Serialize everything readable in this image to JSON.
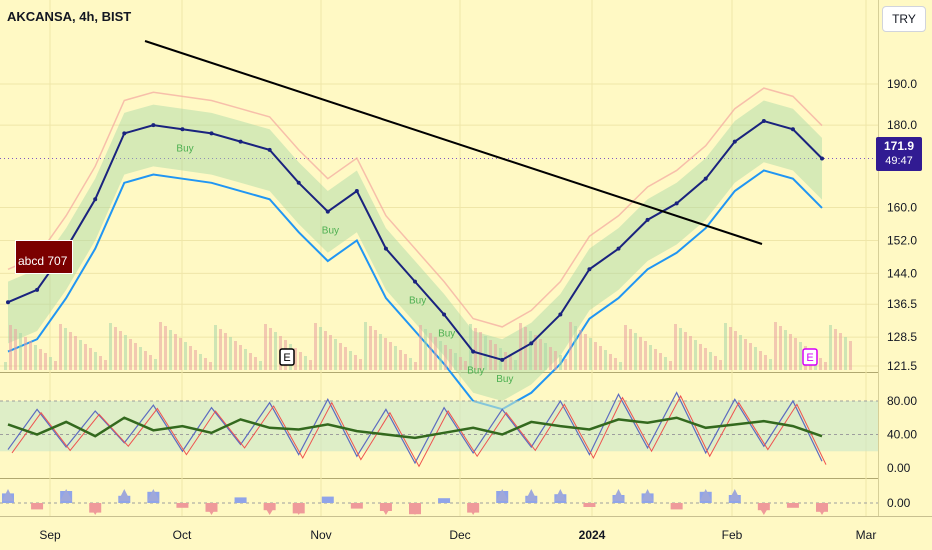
{
  "header": {
    "symbol_title": "AKCANSA, 4h, BIST",
    "currency_button": "TRY"
  },
  "price_tag": {
    "price": "171.9",
    "countdown": "49:47"
  },
  "annotation": {
    "label": "abcd 707"
  },
  "earnings_markers": [
    "E",
    "E"
  ],
  "colors": {
    "background": "#fff9c4",
    "candle": "#1a237e",
    "trendline": "#000000",
    "cloud_blue": "#2196f3",
    "buy_label": "#4caf50",
    "price_tag_bg": "#311b92",
    "stoch_k": "#5c6bc0",
    "stoch_d": "#ef5350",
    "rsi": "#33691e",
    "histo_up": "#90a4e8",
    "histo_down": "#ef9a9a"
  },
  "chart_data": [
    {
      "type": "line",
      "title": "AKCANSA, 4h, BIST",
      "subtype": "candlestick-approx",
      "x_tick_labels": [
        "Sep",
        "Oct",
        "Nov",
        "Dec",
        "2024",
        "Feb",
        "Mar"
      ],
      "y_tick_labels": [
        "190.0",
        "180.0",
        "171.9",
        "160.0",
        "152.0",
        "144.0",
        "136.5",
        "128.5",
        "121.5"
      ],
      "ylim": [
        121.5,
        195
      ],
      "series": [
        {
          "x": [
            "Aug 20",
            "Aug 28",
            "Sep 5",
            "Sep 12",
            "Sep 18",
            "Sep 25",
            "Oct 2",
            "Oct 9",
            "Oct 16",
            "Oct 23",
            "Oct 30",
            "Nov 6",
            "Nov 13",
            "Nov 20",
            "Nov 27",
            "Dec 4",
            "Dec 11",
            "Dec 18",
            "Dec 22",
            "Dec 28",
            "Jan 4",
            "Jan 11",
            "Jan 18",
            "Jan 25",
            "Feb 1",
            "Feb 8",
            "Feb 13",
            "Feb 16",
            "Feb 20"
          ],
          "values": [
            137,
            140,
            150,
            162,
            178,
            180,
            179,
            178,
            176,
            174,
            166,
            159,
            164,
            150,
            142,
            134,
            125,
            123,
            127,
            134,
            145,
            150,
            157,
            161,
            167,
            176,
            181,
            179,
            171.9
          ]
        }
      ],
      "annotations": [
        "Buy",
        "abcd 707"
      ]
    },
    {
      "type": "line",
      "y_tick_labels": [
        "80.00",
        "40.00",
        "0.00"
      ],
      "ylim": [
        0,
        100
      ],
      "series": [
        {
          "values": [
            52,
            40,
            55,
            38,
            60,
            45,
            50,
            42,
            58,
            48,
            46,
            52,
            44,
            40,
            36,
            42,
            48,
            40,
            55,
            50,
            46,
            58,
            54,
            60,
            48,
            52,
            56,
            50,
            38
          ]
        }
      ]
    },
    {
      "type": "bar",
      "y_tick_labels": [
        "0.00"
      ],
      "series": [
        {
          "values": [
            1.2,
            -0.8,
            1.5,
            -1.2,
            0.9,
            1.4,
            -0.6,
            -1.1,
            0.7,
            -0.9,
            -1.3,
            0.8,
            -0.7,
            -1.0,
            -1.4,
            0.6,
            -1.2,
            1.5,
            0.9,
            1.1,
            -0.5,
            1.0,
            1.2,
            -0.8,
            1.4,
            1.0,
            -0.9,
            -0.6,
            -1.1
          ]
        }
      ]
    }
  ]
}
